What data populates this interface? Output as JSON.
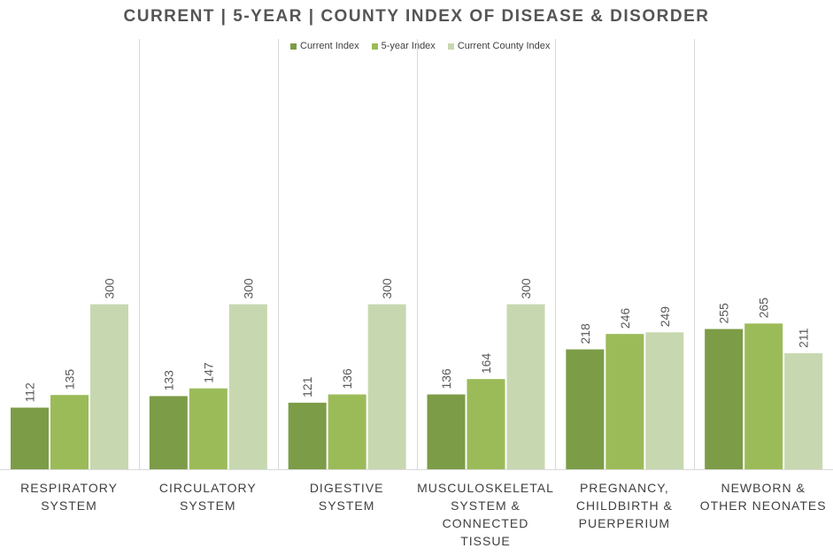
{
  "chart_data": {
    "type": "bar",
    "title": "CURRENT | 5-YEAR | COUNTY INDEX OF DISEASE & DISORDER",
    "categories": [
      [
        "RESPIRATORY",
        "SYSTEM"
      ],
      [
        "CIRCULATORY",
        "SYSTEM"
      ],
      [
        "DIGESTIVE",
        "SYSTEM"
      ],
      [
        "MUSCULOSKELETAL",
        "SYSTEM &",
        "CONNECTED TISSUE"
      ],
      [
        "PREGNANCY,",
        "CHILDBIRTH &",
        "PUERPERIUM"
      ],
      [
        "NEWBORN &",
        "OTHER NEONATES"
      ]
    ],
    "series": [
      {
        "name": "Current Index",
        "color": "#7c9c47",
        "values": [
          112,
          133,
          121,
          136,
          218,
          255
        ]
      },
      {
        "name": "5-year Index",
        "color": "#9bbb59",
        "values": [
          135,
          147,
          136,
          164,
          246,
          265
        ]
      },
      {
        "name": "Current County Index",
        "color": "#c7d8b0",
        "values": [
          300,
          300,
          300,
          300,
          249,
          211
        ]
      }
    ],
    "ylim": [
      0,
      337
    ],
    "xlabel": "",
    "ylabel": "",
    "grid": false,
    "legend_position": "top"
  }
}
